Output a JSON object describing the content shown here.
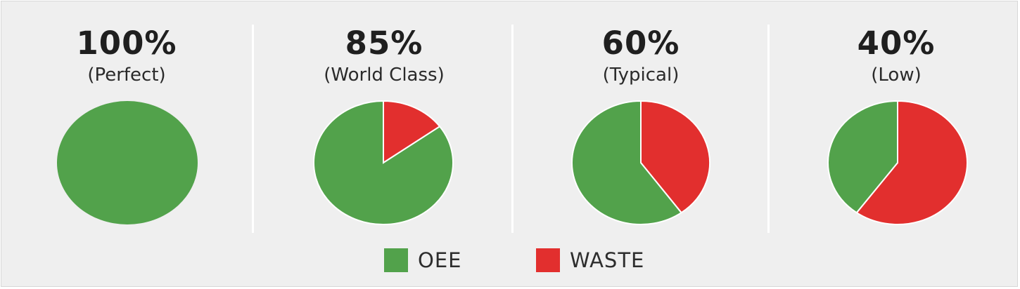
{
  "chart_data": {
    "type": "pie",
    "colors": {
      "OEE": "#52a24b",
      "WASTE": "#e22f2e"
    },
    "legend": {
      "placement": "bottom-center",
      "items": [
        {
          "label": "OEE",
          "color": "#52a24b"
        },
        {
          "label": "WASTE",
          "color": "#e22f2e"
        }
      ]
    },
    "charts": [
      {
        "value_label": "100%",
        "subtitle": "(Perfect)",
        "slices": [
          {
            "label": "OEE",
            "value": 100,
            "color": "#52a24b"
          },
          {
            "label": "WASTE",
            "value": 0,
            "color": "#e22f2e"
          }
        ]
      },
      {
        "value_label": "85%",
        "subtitle": "(World Class)",
        "slices": [
          {
            "label": "OEE",
            "value": 85,
            "color": "#52a24b"
          },
          {
            "label": "WASTE",
            "value": 15,
            "color": "#e22f2e"
          }
        ]
      },
      {
        "value_label": "60%",
        "subtitle": "(Typical)",
        "slices": [
          {
            "label": "OEE",
            "value": 60,
            "color": "#52a24b"
          },
          {
            "label": "WASTE",
            "value": 40,
            "color": "#e22f2e"
          }
        ]
      },
      {
        "value_label": "40%",
        "subtitle": "(Low)",
        "slices": [
          {
            "label": "OEE",
            "value": 40,
            "color": "#52a24b"
          },
          {
            "label": "WASTE",
            "value": 60,
            "color": "#e22f2e"
          }
        ]
      }
    ]
  }
}
